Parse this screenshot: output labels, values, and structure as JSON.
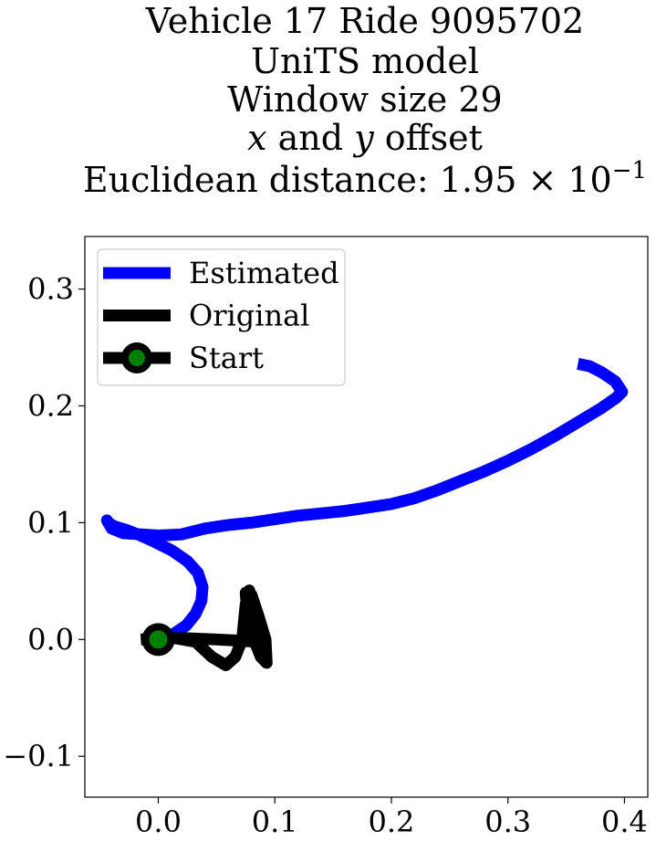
{
  "chart_data": {
    "type": "line",
    "title_lines": [
      "Vehicle 17 Ride 9095702",
      "UniTS model",
      "Window size 29",
      "x and y offset",
      "Euclidean distance: 1.95 × 10^-1"
    ],
    "xlim": [
      -0.063,
      0.42
    ],
    "ylim": [
      -0.135,
      0.345
    ],
    "xticks": [
      0.0,
      0.1,
      0.2,
      0.3,
      0.4
    ],
    "xtick_labels": [
      "0.0",
      "0.1",
      "0.2",
      "0.3",
      "0.4"
    ],
    "yticks": [
      -0.1,
      0.0,
      0.1,
      0.2,
      0.3
    ],
    "ytick_labels": [
      "−0.1",
      "0.0",
      "0.1",
      "0.2",
      "0.3"
    ],
    "grid": false,
    "legend": {
      "placement": "top-left",
      "entries": [
        {
          "label": "Estimated",
          "color": "#0000ff",
          "marker": "none"
        },
        {
          "label": "Original",
          "color": "#000000",
          "marker": "none"
        },
        {
          "label": "Start",
          "color": "#000000",
          "marker": "circle",
          "marker_face": "#008000"
        }
      ]
    },
    "series": [
      {
        "name": "Estimated",
        "color": "#0000ff",
        "x": [
          0.0,
          0.012,
          0.024,
          0.032,
          0.037,
          0.038,
          0.034,
          0.025,
          0.012,
          -0.002,
          -0.015,
          -0.028,
          -0.038,
          -0.043,
          -0.044,
          -0.04,
          -0.03,
          -0.015,
          0.0,
          0.02,
          0.04,
          0.06,
          0.08,
          0.1,
          0.12,
          0.14,
          0.16,
          0.18,
          0.2,
          0.22,
          0.24,
          0.26,
          0.28,
          0.3,
          0.32,
          0.34,
          0.36,
          0.38,
          0.393,
          0.398,
          0.392,
          0.38,
          0.37,
          0.36
        ],
        "y": [
          0.0,
          0.004,
          0.012,
          0.022,
          0.033,
          0.045,
          0.057,
          0.067,
          0.076,
          0.083,
          0.089,
          0.094,
          0.097,
          0.1,
          0.102,
          0.095,
          0.091,
          0.09,
          0.089,
          0.09,
          0.095,
          0.098,
          0.1,
          0.103,
          0.106,
          0.108,
          0.11,
          0.113,
          0.116,
          0.121,
          0.128,
          0.136,
          0.144,
          0.153,
          0.163,
          0.174,
          0.186,
          0.198,
          0.207,
          0.212,
          0.221,
          0.229,
          0.234,
          0.236
        ]
      },
      {
        "name": "Original",
        "color": "#000000",
        "x": [
          -0.015,
          0.0,
          0.025,
          0.05,
          0.07,
          0.085,
          0.09,
          0.085,
          0.08,
          0.076,
          0.075,
          0.08,
          0.086,
          0.092,
          0.093,
          0.088,
          0.08,
          0.077,
          0.078,
          0.075,
          0.072,
          0.066,
          0.058,
          0.046,
          0.032,
          0.015,
          0.0
        ],
        "y": [
          0.0,
          0.001,
          0.001,
          0.0,
          -0.001,
          -0.002,
          0.0,
          0.005,
          0.015,
          0.028,
          0.04,
          0.038,
          0.02,
          0.0,
          -0.02,
          -0.015,
          0.005,
          0.02,
          0.042,
          0.03,
          0.0,
          -0.015,
          -0.022,
          -0.015,
          -0.002,
          0.001,
          0.0
        ]
      }
    ],
    "start_point": {
      "label": "Start",
      "x": 0.0,
      "y": 0.0
    }
  }
}
